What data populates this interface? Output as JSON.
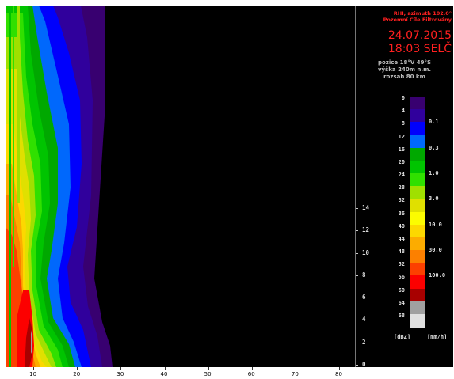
{
  "header": {
    "line1": "RHI, azimuth 102.0°",
    "line2": "Pozemní Cíle Filtrovány",
    "date": "24.07.2015",
    "time": "18:03 SELČ",
    "position": "pozice 18°V 49°S",
    "altitude": "výška 240m n.m.",
    "range": "rozsah 80 km"
  },
  "height_axis": {
    "ticks": [
      "0",
      "2",
      "4",
      "6",
      "8",
      "10",
      "12",
      "14"
    ]
  },
  "distance_axis": {
    "ticks": [
      "10",
      "20",
      "30",
      "40",
      "50",
      "60",
      "70",
      "80"
    ]
  },
  "legend": {
    "dbz_labels": [
      "0",
      "4",
      "8",
      "12",
      "16",
      "20",
      "24",
      "28",
      "32",
      "36",
      "40",
      "44",
      "48",
      "52",
      "56",
      "60",
      "64",
      "68"
    ],
    "rate_labels": [
      "0.1",
      "0.3",
      "1.0",
      "3.0",
      "10.0",
      "30.0",
      "100.0"
    ],
    "unit_dbz": "[dBZ]",
    "unit_rate": "[mm/h]",
    "colors": [
      "#380070",
      "#30009c",
      "#0000fc",
      "#0068fc",
      "#00a800",
      "#00c400",
      "#30e000",
      "#a0e000",
      "#e0e000",
      "#fcfc00",
      "#fcd800",
      "#fcac00",
      "#fc8000",
      "#fc4000",
      "#fc0000",
      "#a80000",
      "#a0a0a0",
      "#e0e0e0"
    ]
  }
}
